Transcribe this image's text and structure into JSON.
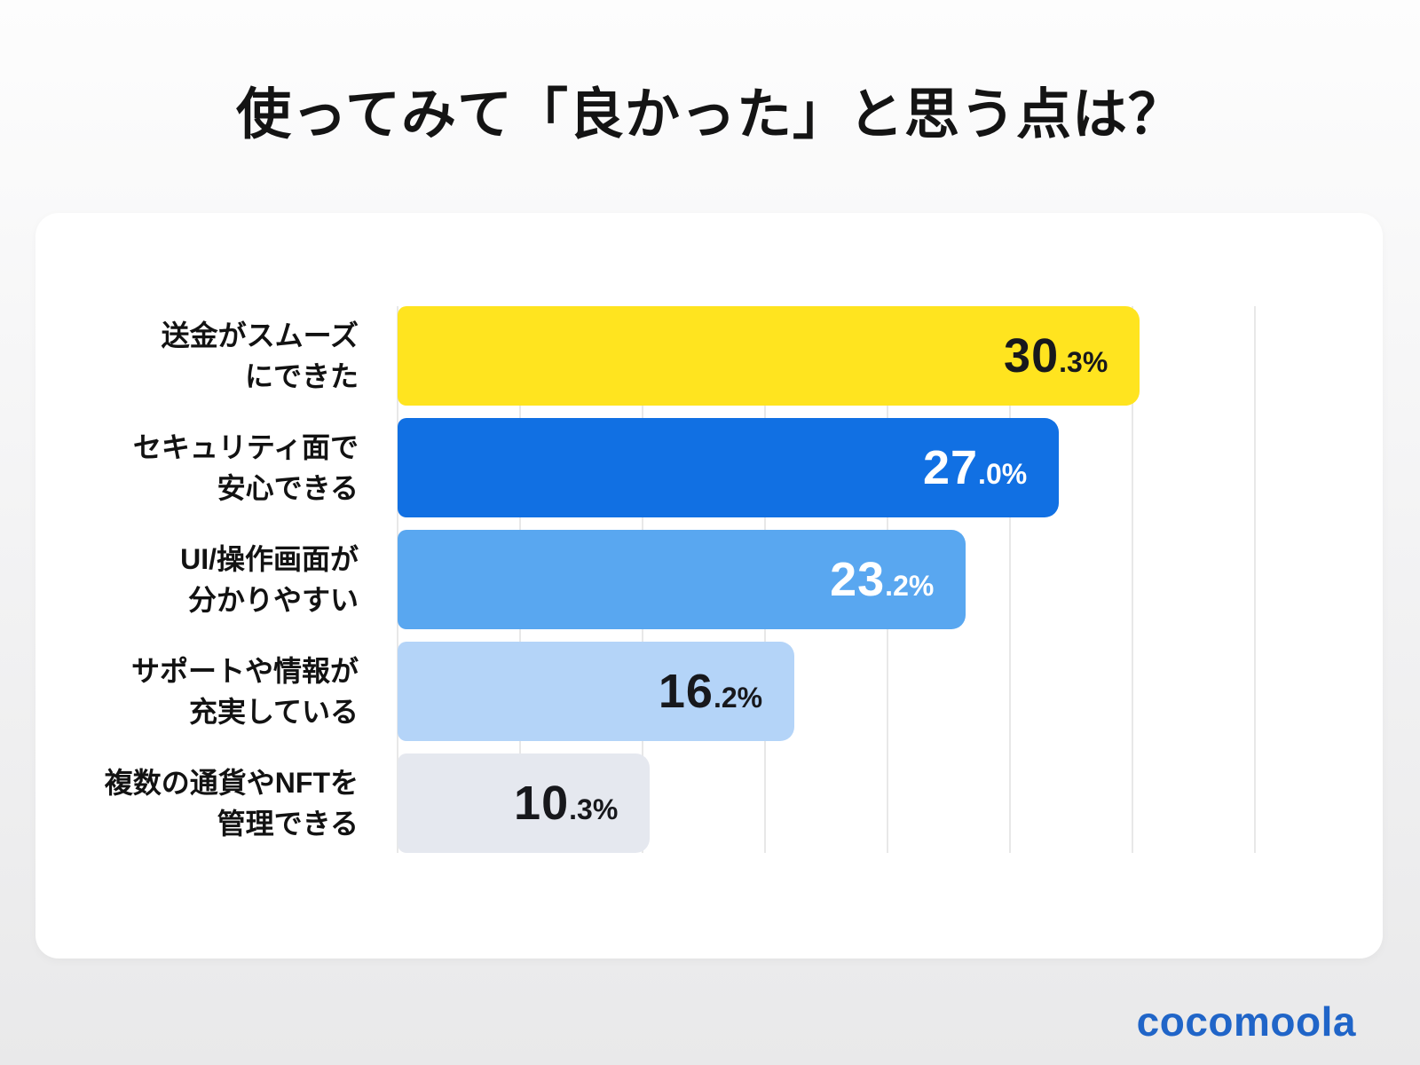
{
  "title": "使ってみて「良かった」と思う点は？",
  "logo": "cocomoola",
  "colors": {
    "background_top": "#fdfdfd",
    "background_bottom": "#e9e9ea",
    "card": "#ffffff",
    "title_text": "#141414",
    "gridline": "#e8e8e8",
    "logo": "#2065c8"
  },
  "chart_data": {
    "type": "bar",
    "orientation": "horizontal",
    "title": "使ってみて「良かった」と思う点は？",
    "xlabel": "",
    "ylabel": "",
    "xlim": [
      0,
      35
    ],
    "grid": true,
    "grid_step_percent": 5,
    "grid_divisions": 7,
    "categories": [
      [
        "送金がスムーズ",
        "にできた"
      ],
      [
        "セキュリティ面で",
        "安心できる"
      ],
      [
        "UI/操作画面が",
        "分かりやすい"
      ],
      [
        "サポートや情報が",
        "充実している"
      ],
      [
        "複数の通貨やNFTを",
        "管理できる"
      ]
    ],
    "values": [
      30.3,
      27.0,
      23.2,
      16.2,
      10.3
    ],
    "value_labels": [
      [
        "30",
        ".3%"
      ],
      [
        "27",
        ".0%"
      ],
      [
        "23",
        ".2%"
      ],
      [
        "16",
        ".2%"
      ],
      [
        "10",
        ".3%"
      ]
    ],
    "bar_colors": [
      "#FFE41F",
      "#1170E3",
      "#59A7F0",
      "#B4D4F8",
      "#E5E8EF"
    ],
    "value_text_colors": [
      "#17181c",
      "#ffffff",
      "#ffffff",
      "#17181c",
      "#17181c"
    ]
  }
}
